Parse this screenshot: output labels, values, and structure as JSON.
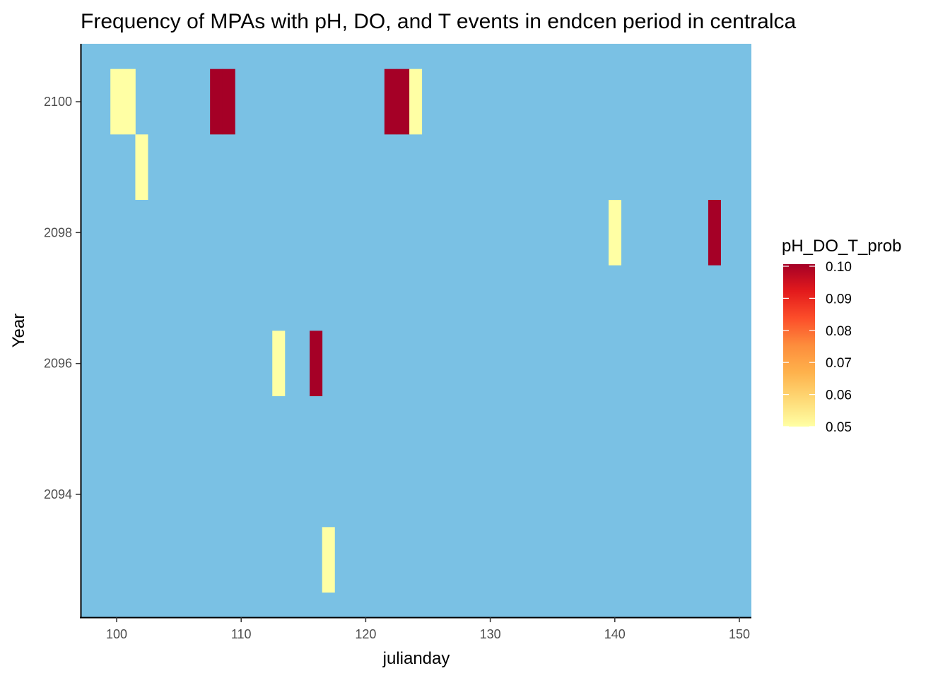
{
  "chart_data": {
    "type": "heatmap",
    "title": "Frequency of MPAs with pH, DO, and T events in endcen period in centralca",
    "xlabel": "julianday",
    "ylabel": "Year",
    "xlim": [
      97,
      151
    ],
    "ylim": [
      2092,
      2101
    ],
    "x_ticks": [
      100,
      110,
      120,
      130,
      140,
      150
    ],
    "y_ticks": [
      2094,
      2096,
      2098,
      2100
    ],
    "background_color": "#7AC1E4",
    "grid": false,
    "legend": {
      "title": "pH_DO_T_prob",
      "position": "right",
      "min": 0.05,
      "max": 0.1,
      "ticks": [
        "0.05",
        "0.06",
        "0.07",
        "0.08",
        "0.09",
        "0.10"
      ],
      "colors": [
        "#FFFFA4",
        "#FED976",
        "#FEB24C",
        "#FD8D3C",
        "#FC4E2A",
        "#E31A1C",
        "#A50026"
      ]
    },
    "cells": [
      {
        "x": 100,
        "year": 2100,
        "value": 0.05
      },
      {
        "x": 101,
        "year": 2100,
        "value": 0.05
      },
      {
        "x": 102,
        "year": 2099,
        "value": 0.05
      },
      {
        "x": 108,
        "year": 2100,
        "value": 0.1
      },
      {
        "x": 109,
        "year": 2100,
        "value": 0.1
      },
      {
        "x": 122,
        "year": 2100,
        "value": 0.1
      },
      {
        "x": 123,
        "year": 2100,
        "value": 0.1
      },
      {
        "x": 124,
        "year": 2100,
        "value": 0.05
      },
      {
        "x": 140,
        "year": 2098,
        "value": 0.05
      },
      {
        "x": 148,
        "year": 2098,
        "value": 0.1
      },
      {
        "x": 113,
        "year": 2096,
        "value": 0.05
      },
      {
        "x": 116,
        "year": 2096,
        "value": 0.1
      },
      {
        "x": 117,
        "year": 2093,
        "value": 0.05
      }
    ]
  }
}
